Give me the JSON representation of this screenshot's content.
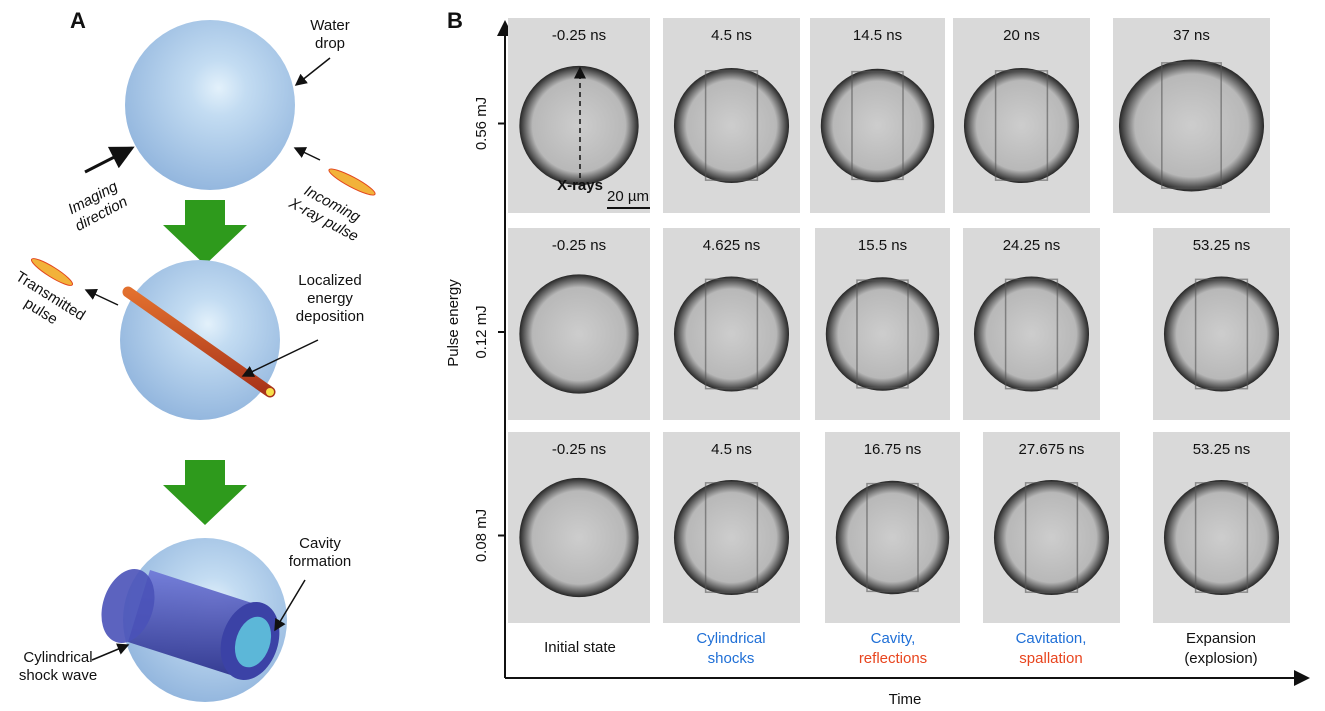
{
  "panel_a": {
    "label": "A",
    "water_drop": [
      "Water",
      "drop"
    ],
    "imaging_direction": [
      "Imaging",
      "direction"
    ],
    "incoming_pulse": [
      "Incoming",
      "X-ray pulse"
    ],
    "transmitted_pulse": [
      "Transmitted",
      "pulse"
    ],
    "energy_deposition": [
      "Localized",
      "energy",
      "deposition"
    ],
    "cavity_formation": [
      "Cavity",
      "formation"
    ],
    "shock_wave": [
      "Cylindrical",
      "shock wave"
    ]
  },
  "panel_b": {
    "label": "B",
    "y_axis_label": "Pulse energy",
    "x_axis_label": "Time",
    "xray_label": "X-rays",
    "scale_bar": "20 µm",
    "rows": [
      {
        "energy": "0.56 mJ",
        "frames": [
          "-0.25 ns",
          "4.5 ns",
          "14.5 ns",
          "20 ns",
          "37 ns"
        ]
      },
      {
        "energy": "0.12 mJ",
        "frames": [
          "-0.25 ns",
          "4.625 ns",
          "15.5 ns",
          "24.25 ns",
          "53.25 ns"
        ]
      },
      {
        "energy": "0.08 mJ",
        "frames": [
          "-0.25 ns",
          "4.5 ns",
          "16.75 ns",
          "27.675 ns",
          "53.25 ns"
        ]
      }
    ],
    "stages": [
      [
        "Initial state"
      ],
      [
        "Cylindrical",
        "shocks"
      ],
      [
        "Cavity,",
        "reflections"
      ],
      [
        "Cavitation,",
        "spallation"
      ],
      [
        "Expansion",
        "(explosion)"
      ]
    ]
  }
}
